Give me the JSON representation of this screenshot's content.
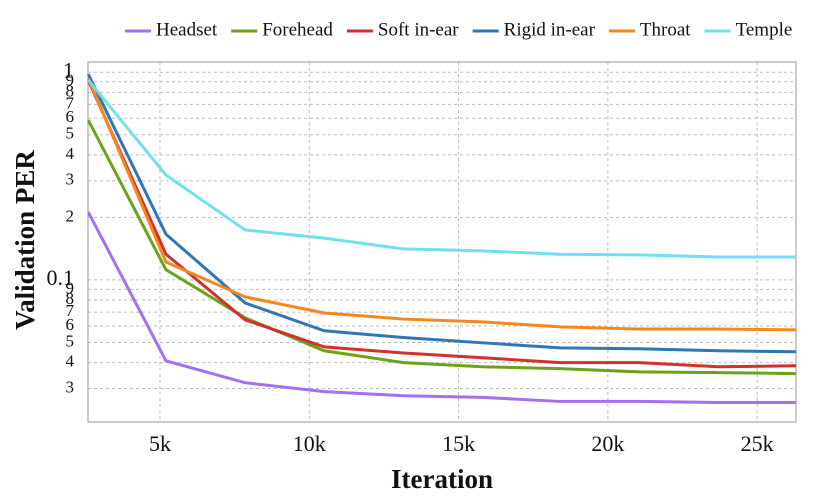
{
  "chart_data": {
    "type": "line",
    "xlabel": "Iteration",
    "ylabel": "Validation PER",
    "yscale": "log",
    "grid": true,
    "legend": "top",
    "x": [
      2600,
      5200,
      7850,
      10500,
      13150,
      15800,
      18400,
      21050,
      23700,
      26300
    ],
    "xlim": [
      2590,
      26300
    ],
    "xticks": [
      {
        "value": 5000,
        "label": "5k"
      },
      {
        "value": 10000,
        "label": "10k"
      },
      {
        "value": 15000,
        "label": "15k"
      },
      {
        "value": 20000,
        "label": "20k"
      },
      {
        "value": 25000,
        "label": "25k"
      }
    ],
    "ylim": [
      0.0207,
      1.12
    ],
    "yticks": [
      1,
      {
        "value": 0.9,
        "label": "9"
      },
      {
        "value": 0.8,
        "label": "8"
      },
      {
        "value": 0.7,
        "label": "7"
      },
      {
        "value": 0.6,
        "label": "6"
      },
      {
        "value": 0.5,
        "label": "5"
      },
      {
        "value": 0.4,
        "label": "4"
      },
      {
        "value": 0.3,
        "label": "3"
      },
      {
        "value": 0.2,
        "label": "2"
      },
      0.1,
      {
        "value": 0.09,
        "label": "9"
      },
      {
        "value": 0.08,
        "label": "8"
      },
      {
        "value": 0.07,
        "label": "7"
      },
      {
        "value": 0.06,
        "label": "6"
      },
      {
        "value": 0.05,
        "label": "5"
      },
      {
        "value": 0.04,
        "label": "4"
      },
      {
        "value": 0.03,
        "label": "3"
      }
    ],
    "series": [
      {
        "name": "Headset",
        "color": "#a66ff0",
        "values": [
          0.212,
          0.0408,
          0.032,
          0.029,
          0.0277,
          0.0272,
          0.026,
          0.026,
          0.0257,
          0.0257
        ]
      },
      {
        "name": "Forehead",
        "color": "#6aa31a",
        "values": [
          0.588,
          0.112,
          0.0657,
          0.0456,
          0.04,
          0.0382,
          0.0374,
          0.0361,
          0.0358,
          0.0354
        ]
      },
      {
        "name": "Soft in-ear",
        "color": "#d0312d",
        "values": [
          0.915,
          0.133,
          0.0643,
          0.0476,
          0.0445,
          0.0422,
          0.04,
          0.04,
          0.0382,
          0.0386
        ]
      },
      {
        "name": "Rigid in-ear",
        "color": "#2f77b4",
        "values": [
          0.978,
          0.166,
          0.0775,
          0.0569,
          0.0528,
          0.0498,
          0.0471,
          0.0466,
          0.0456,
          0.0451
        ]
      },
      {
        "name": "Throat",
        "color": "#f5871f",
        "values": [
          0.936,
          0.122,
          0.0829,
          0.0693,
          0.0648,
          0.0628,
          0.0594,
          0.058,
          0.058,
          0.0575
        ]
      },
      {
        "name": "Temple",
        "color": "#6fe0f0",
        "values": [
          0.915,
          0.32,
          0.174,
          0.159,
          0.141,
          0.138,
          0.133,
          0.132,
          0.129,
          0.129
        ]
      }
    ]
  }
}
